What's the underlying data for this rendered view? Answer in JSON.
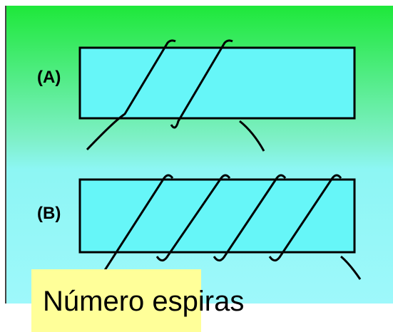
{
  "labels": {
    "a": "(A)",
    "b": "(B)"
  },
  "caption": "Número espiras"
}
